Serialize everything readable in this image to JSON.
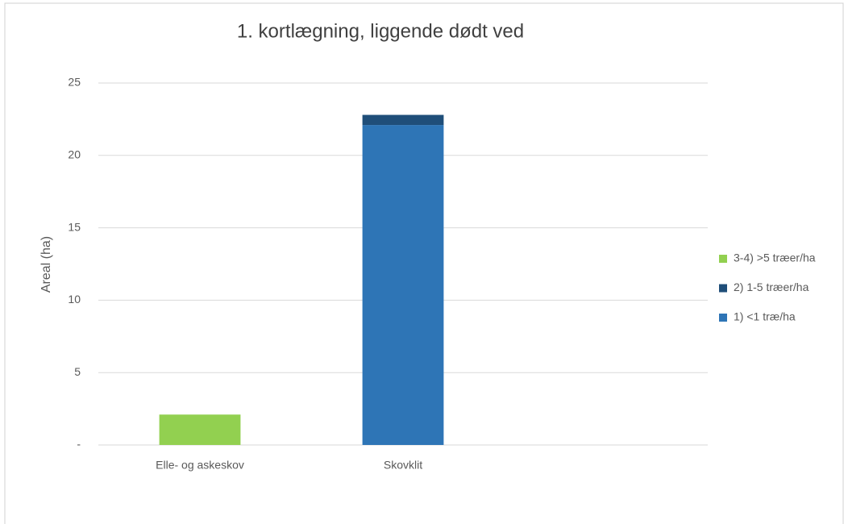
{
  "chart_data": {
    "type": "stacked_bar",
    "title": "1. kortlægning, liggende dødt ved",
    "y_label": "Areal (ha)",
    "categories": [
      "Elle- og askeskov",
      "Skovklit",
      null
    ],
    "series": [
      {
        "name": "1) <1 træ/ha",
        "color": "#2e75b6",
        "values": [
          0,
          22.1,
          null
        ]
      },
      {
        "name": "2) 1-5 træer/ha",
        "color": "#1f4e79",
        "values": [
          0,
          0.7,
          null
        ]
      },
      {
        "name": "3-4) >5 træer/ha",
        "color": "#92d050",
        "values": [
          2.1,
          0,
          null
        ]
      }
    ],
    "ylim": [
      0,
      25
    ],
    "yticks": [
      {
        "value": 0,
        "label": "-"
      },
      5,
      10,
      15,
      20,
      25
    ],
    "grid": true,
    "legend": "right"
  }
}
